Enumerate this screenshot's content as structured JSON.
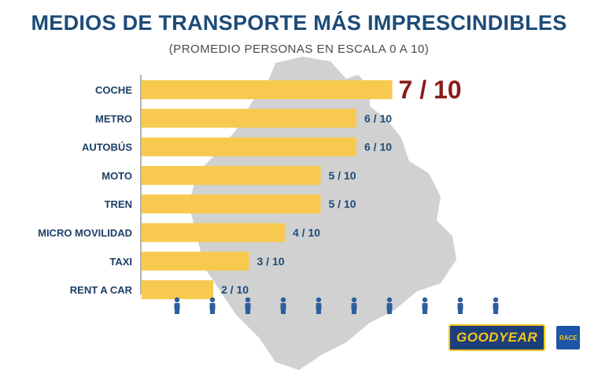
{
  "chart_data": {
    "type": "bar",
    "orientation": "horizontal",
    "title": "MEDIOS DE TRANSPORTE MÁS IMPRESCINDIBLES",
    "subtitle": "(PROMEDIO PERSONAS EN ESCALA 0 A 10)",
    "categories": [
      "COCHE",
      "METRO",
      "AUTOBÚS",
      "MOTO",
      "TREN",
      "MICRO MOVILIDAD",
      "TAXI",
      "RENT A CAR"
    ],
    "values": [
      7,
      6,
      6,
      5,
      5,
      4,
      3,
      2
    ],
    "value_labels": [
      "7 / 10",
      "6 / 10",
      "6 / 10",
      "5 / 10",
      "5 / 10",
      "4 / 10",
      "3 / 10",
      "2 / 10"
    ],
    "xlim": [
      0,
      10
    ],
    "highlight_index": 0,
    "bar_color": "#f7c94f",
    "label_color": "#1c4b78",
    "highlight_color": "#8b1a1a",
    "scale_icons": 10,
    "scale_icon_name": "person-icon"
  },
  "logos": {
    "goodyear": "GOODYEAR",
    "race": "RACE"
  }
}
